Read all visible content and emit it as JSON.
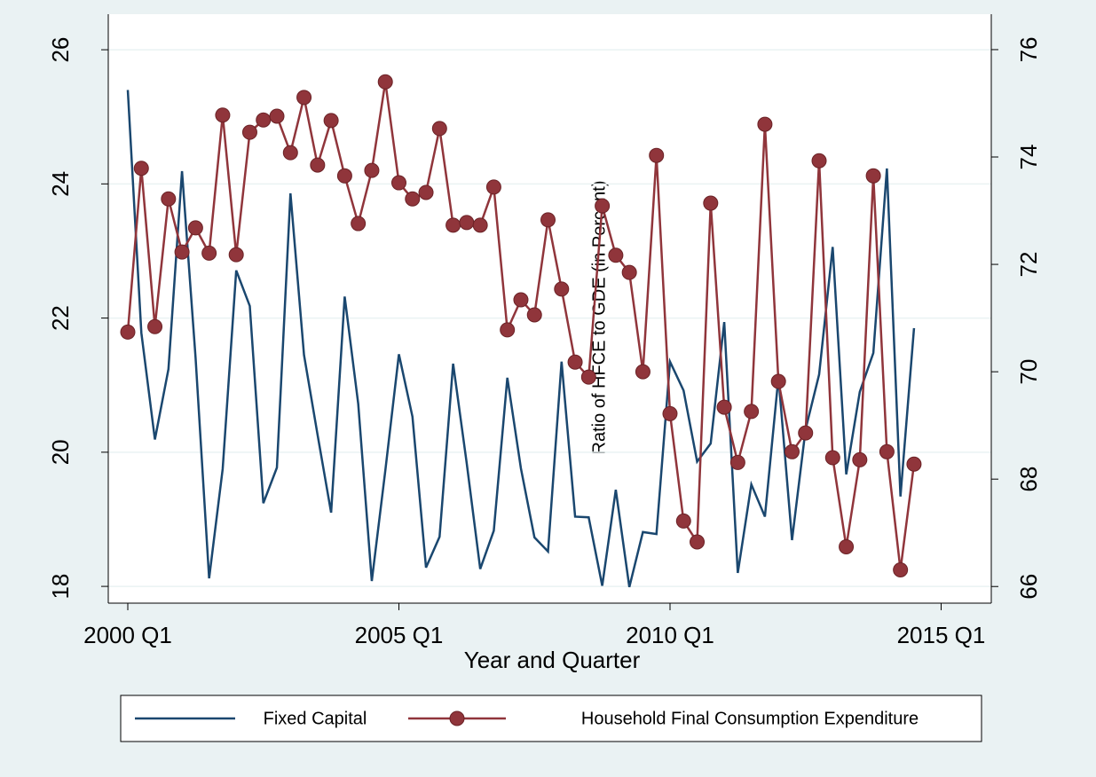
{
  "chart_data": {
    "type": "line",
    "xlabel": "Year and Quarter",
    "y2label": "Ratio of HFCE to GDE (in Percent)",
    "x": [
      160,
      161,
      162,
      163,
      164,
      165,
      166,
      167,
      168,
      169,
      170,
      171,
      172,
      173,
      174,
      175,
      176,
      177,
      178,
      179,
      180,
      181,
      182,
      183,
      184,
      185,
      186,
      187,
      188,
      189,
      190,
      191,
      192,
      193,
      194,
      195,
      196,
      197,
      198,
      199,
      200,
      201,
      202,
      203,
      204,
      205,
      206,
      207,
      208,
      209,
      210,
      211,
      212,
      213,
      214,
      215,
      216,
      217,
      218
    ],
    "xlim": [
      158.56,
      223.7
    ],
    "xticks": [
      {
        "value": 160,
        "label": "2000 Q1"
      },
      {
        "value": 180,
        "label": "2005 Q1"
      },
      {
        "value": 200,
        "label": "2010 Q1"
      },
      {
        "value": 220,
        "label": "2015 Q1"
      }
    ],
    "ylim": [
      17.75,
      26.53
    ],
    "yticks": [
      18,
      20,
      22,
      24,
      26
    ],
    "y2lim": [
      65.69,
      76.66
    ],
    "y2ticks": [
      66,
      68,
      70,
      72,
      74,
      76
    ],
    "grid": true,
    "series": [
      {
        "name": "Fixed Capital",
        "color": "#1a476f",
        "marker": false,
        "values": [
          25.4,
          21.78,
          20.19,
          21.24,
          24.19,
          21.41,
          18.12,
          19.75,
          22.71,
          22.18,
          19.24,
          19.77,
          23.86,
          21.45,
          20.26,
          19.1,
          22.32,
          20.72,
          18.08,
          19.73,
          21.46,
          20.53,
          18.28,
          18.74,
          21.32,
          19.84,
          18.26,
          18.83,
          21.11,
          19.76,
          18.73,
          18.52,
          21.35,
          19.04,
          19.03,
          18.01,
          19.44,
          17.99,
          18.81,
          18.78,
          21.35,
          20.92,
          19.86,
          20.13,
          21.94,
          18.2,
          19.52,
          19.04,
          21.12,
          18.69,
          20.34,
          21.16,
          23.06,
          19.67,
          20.9,
          21.48,
          24.23,
          19.34,
          21.85
        ]
      },
      {
        "name": "Household Final Consumption Expenditure",
        "color": "#90353b",
        "marker": true,
        "axis": "y2",
        "values": [
          70.74,
          73.79,
          70.84,
          73.22,
          72.23,
          72.68,
          72.21,
          74.78,
          72.18,
          74.46,
          74.69,
          74.76,
          74.08,
          75.11,
          73.85,
          74.68,
          73.65,
          72.76,
          73.75,
          75.4,
          73.52,
          73.22,
          73.34,
          74.53,
          72.73,
          72.78,
          72.73,
          73.44,
          70.78,
          71.34,
          71.06,
          72.83,
          71.54,
          70.18,
          69.9,
          73.09,
          72.17,
          71.85,
          70.0,
          74.03,
          69.22,
          67.22,
          66.83,
          73.14,
          69.34,
          68.31,
          69.26,
          74.61,
          69.82,
          68.51,
          68.86,
          73.93,
          68.4,
          66.74,
          68.36,
          73.65,
          68.51,
          66.31,
          68.28
        ]
      }
    ]
  }
}
